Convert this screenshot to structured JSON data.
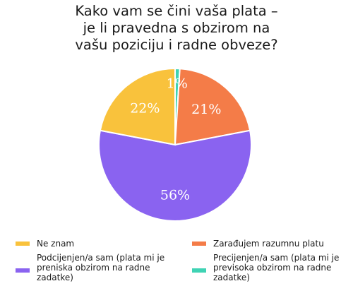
{
  "chart_data": {
    "type": "pie",
    "title_lines": [
      "Kako vam se čini vaša plata –",
      "je li pravedna s obzirom na",
      "vašu poziciju i radne obveze?"
    ],
    "slices": [
      {
        "label": "Precijenjen/a sam (plata mi je\npreviskoa obziro na radne\nzadatke)",
        "value": 1,
        "display": "1%",
        "color": "#3fd3b4"
      },
      {
        "label": "Zarađujem razumnu platu",
        "value": 21,
        "display": "21%",
        "color": "#f47c48"
      },
      {
        "label": "Podcijenjen/a sam (plata mi je\npreniska obzirom na radne\nzadatke)",
        "value": 56,
        "display": "56%",
        "color": "#8a63f0"
      },
      {
        "label": "Ne znam",
        "value": 22,
        "display": "22%",
        "color": "#f9c23c"
      }
    ],
    "legend": [
      {
        "text": "Ne znam",
        "color": "#f9c23c"
      },
      {
        "text": "Zarađujem razumnu platu",
        "color": "#f47c48"
      },
      {
        "text": "Podcijenjen/a sam (plata mi je\npreniska obzirom na radne\nzadatke)",
        "color": "#8a63f0"
      },
      {
        "text": "Precijenjen/a sam (plata mi je\nprevisoka obzirom na radne\nzadatke)",
        "color": "#3fd3b4"
      }
    ],
    "legend_placement": "bottom"
  }
}
